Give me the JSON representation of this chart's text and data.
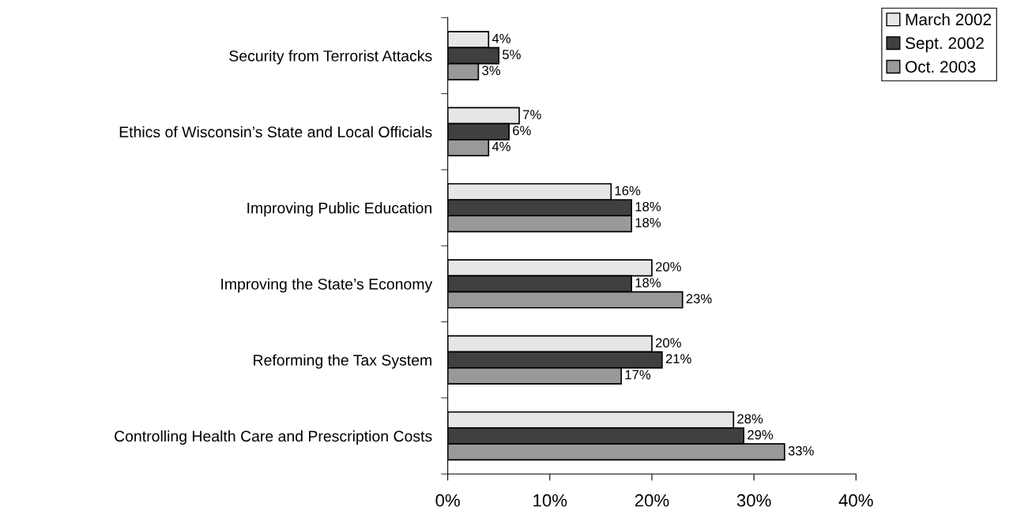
{
  "chart_data": {
    "type": "bar",
    "orientation": "horizontal",
    "categories": [
      "Security from Terrorist Attacks",
      "Ethics of Wisconsin’s State and Local Officials",
      "Improving Public Education",
      "Improving the State’s Economy",
      "Reforming the Tax System",
      "Controlling Health Care and Prescription Costs"
    ],
    "series": [
      {
        "name": "March 2002",
        "color": "#e6e6e6",
        "values": [
          4,
          7,
          16,
          20,
          20,
          28
        ],
        "value_labels": [
          "4%",
          "7%",
          "16%",
          "20%",
          "20%",
          "28%"
        ]
      },
      {
        "name": "Sept. 2002",
        "color": "#404040",
        "values": [
          5,
          6,
          18,
          18,
          21,
          29
        ],
        "value_labels": [
          "5%",
          "6%",
          "18%",
          "18%",
          "21%",
          "29%"
        ]
      },
      {
        "name": "Oct. 2003",
        "color": "#999999",
        "values": [
          3,
          4,
          18,
          23,
          17,
          33
        ],
        "value_labels": [
          "3%",
          "4%",
          "18%",
          "23%",
          "17%",
          "33%"
        ]
      }
    ],
    "xlim": [
      0,
      40
    ],
    "xticks": [
      {
        "value": 0,
        "label": "0%"
      },
      {
        "value": 10,
        "label": "10%"
      },
      {
        "value": 20,
        "label": "20%"
      },
      {
        "value": 30,
        "label": "30%"
      },
      {
        "value": 40,
        "label": "40%"
      }
    ],
    "grid": false,
    "legend": "top right"
  }
}
